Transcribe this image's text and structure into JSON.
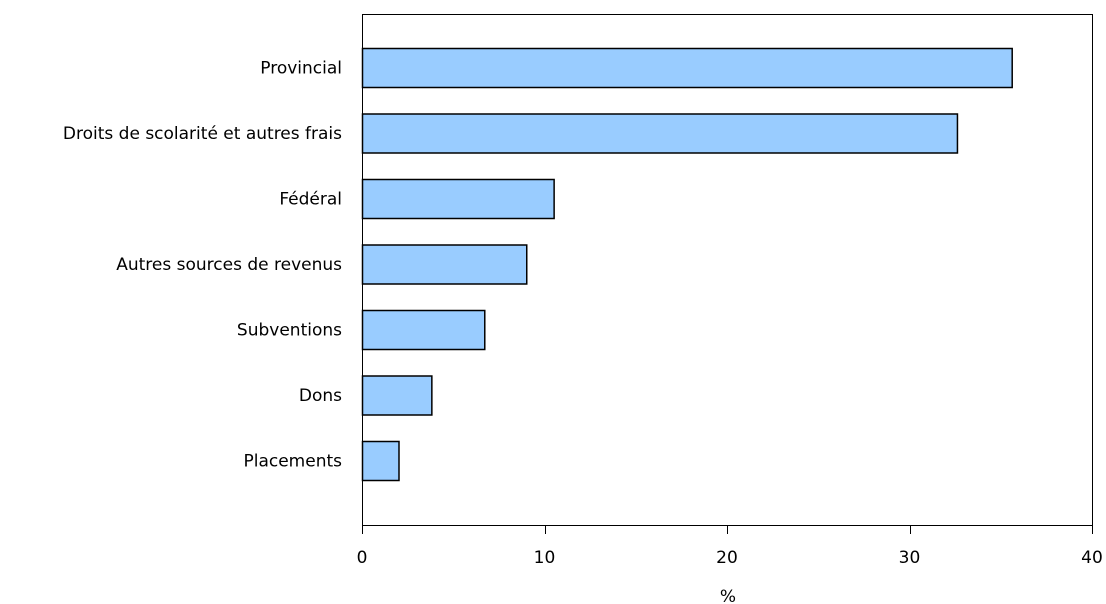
{
  "chart_data": {
    "type": "bar",
    "orientation": "horizontal",
    "categories": [
      "Provincial",
      "Droits de scolarité et autres frais",
      "Fédéral",
      "Autres sources de revenus",
      "Subventions",
      "Dons",
      "Placements"
    ],
    "values": [
      35.6,
      32.6,
      10.5,
      9.0,
      6.7,
      3.8,
      2.0
    ],
    "xlabel": "%",
    "ylabel": "",
    "xlim": [
      0,
      40
    ],
    "xticks": [
      0,
      10,
      20,
      30,
      40
    ],
    "grid": false,
    "bar_color": "#99ccff",
    "bar_edge_color": "#000000"
  }
}
